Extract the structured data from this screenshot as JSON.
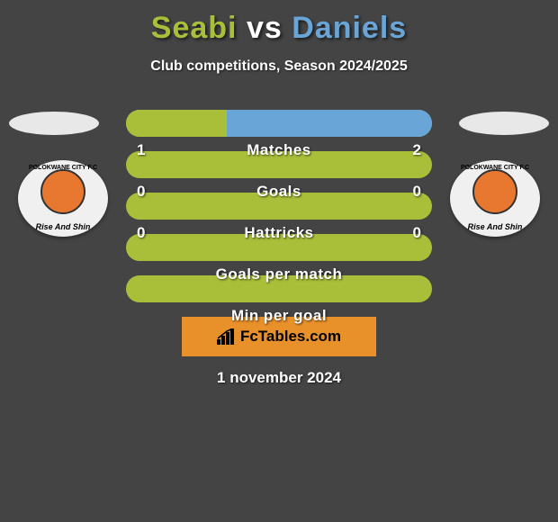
{
  "title": {
    "player1": "Seabi",
    "vs": "vs",
    "player2": "Daniels",
    "player1_color": "#a9bf3a",
    "player2_color": "#6aa5d8"
  },
  "subtitle": "Club competitions, Season 2024/2025",
  "badge": {
    "top_text": "POLOKWANE CITY F.C",
    "bottom_text": "Rise And Shin",
    "inner_color": "#e87830"
  },
  "bars": [
    {
      "label": "Matches",
      "left_value": "1",
      "right_value": "2",
      "left_pct": 33,
      "right_pct": 67,
      "left_color": "#a9bf3a",
      "right_color": "#6aa5d8",
      "track_color": "#a9bf3a",
      "show_values": true
    },
    {
      "label": "Goals",
      "left_value": "0",
      "right_value": "0",
      "left_pct": 0,
      "right_pct": 0,
      "left_color": "#a9bf3a",
      "right_color": "#6aa5d8",
      "track_color": "#a9bf3a",
      "show_values": true
    },
    {
      "label": "Hattricks",
      "left_value": "0",
      "right_value": "0",
      "left_pct": 0,
      "right_pct": 0,
      "left_color": "#a9bf3a",
      "right_color": "#6aa5d8",
      "track_color": "#a9bf3a",
      "show_values": true
    },
    {
      "label": "Goals per match",
      "left_value": "",
      "right_value": "",
      "left_pct": 0,
      "right_pct": 0,
      "left_color": "#a9bf3a",
      "right_color": "#6aa5d8",
      "track_color": "#a9bf3a",
      "show_values": false
    },
    {
      "label": "Min per goal",
      "left_value": "",
      "right_value": "",
      "left_pct": 0,
      "right_pct": 0,
      "left_color": "#a9bf3a",
      "right_color": "#6aa5d8",
      "track_color": "#a9bf3a",
      "show_values": false
    }
  ],
  "logo": {
    "text": "FcTables.com",
    "bg_color": "#e8902a"
  },
  "date": "1 november 2024",
  "colors": {
    "page_bg": "#444444",
    "text_white": "#ffffff"
  }
}
